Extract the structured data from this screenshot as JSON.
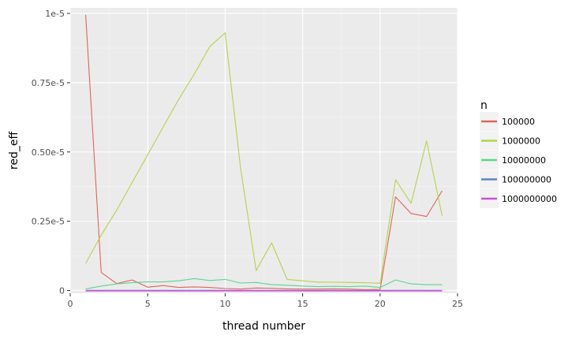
{
  "chart_data": {
    "type": "line",
    "xlabel": "thread number",
    "ylabel": "red_eff",
    "xlim": [
      0,
      25
    ],
    "ylim": [
      -1e-07,
      1.02e-05
    ],
    "x_ticks": [
      0,
      5,
      10,
      15,
      20,
      25
    ],
    "x_tick_labels": [
      "0",
      "5",
      "10",
      "15",
      "20",
      "25"
    ],
    "y_ticks": [
      0,
      2.5e-06,
      5e-06,
      7.5e-06,
      1e-05
    ],
    "y_tick_labels": [
      "0",
      "0.25e-5",
      "0.50e-5",
      "0.75e-5",
      "1e-5"
    ],
    "grid": true,
    "legend": {
      "title": "n",
      "position": "right"
    },
    "x": [
      1,
      2,
      3,
      4,
      5,
      6,
      7,
      8,
      9,
      10,
      11,
      12,
      13,
      14,
      15,
      16,
      17,
      18,
      19,
      20,
      21,
      22,
      23,
      24
    ],
    "series": [
      {
        "name": "100000",
        "color": "#e0645a",
        "values": [
          9.95e-06,
          6.5e-07,
          2.5e-07,
          3.8e-07,
          1.2e-07,
          1.8e-07,
          1.1e-07,
          1.3e-07,
          1.1e-07,
          7e-08,
          5e-08,
          9e-08,
          8e-08,
          6e-08,
          5e-08,
          5e-08,
          6e-08,
          5e-08,
          3e-08,
          4e-08,
          3.38e-06,
          2.78e-06,
          2.67e-06,
          3.6e-06
        ]
      },
      {
        "name": "1000000",
        "color": "#b3d44a",
        "values": [
          9.8e-07,
          2e-06,
          2.9e-06,
          3.9e-06,
          4.9e-06,
          5.9e-06,
          6.9e-06,
          7.8e-06,
          8.8e-06,
          9.3e-06,
          4.4e-06,
          7.2e-07,
          1.72e-06,
          4e-07,
          3.5e-07,
          3e-07,
          3e-07,
          2.9e-07,
          2.8e-07,
          2.6e-07,
          4e-06,
          3.15e-06,
          5.4e-06,
          2.7e-06
        ]
      },
      {
        "name": "10000000",
        "color": "#5cd68c",
        "values": [
          6e-08,
          1.6e-07,
          2.4e-07,
          2.8e-07,
          3.1e-07,
          3.1e-07,
          3.5e-07,
          4.3e-07,
          3.6e-07,
          4e-07,
          2.7e-07,
          2.9e-07,
          2.1e-07,
          1.9e-07,
          1.6e-07,
          1.4e-07,
          1.5e-07,
          1.4e-07,
          1.6e-07,
          1.1e-07,
          3.8e-07,
          2.4e-07,
          2.1e-07,
          2.1e-07
        ]
      },
      {
        "name": "100000000",
        "color": "#5b82d6",
        "values": [
          0,
          0,
          0,
          0,
          0,
          0,
          0,
          0,
          0,
          0,
          0,
          0,
          0,
          0,
          0,
          0,
          0,
          0,
          0,
          0,
          0,
          0,
          0,
          0
        ]
      },
      {
        "name": "1000000000",
        "color": "#c452d9",
        "values": [
          -1e-08,
          -1e-08,
          -1e-08,
          -1e-08,
          -1e-08,
          -1e-08,
          -1e-08,
          -1e-08,
          -1e-08,
          -1e-08,
          -1e-08,
          -1e-08,
          -1e-08,
          -1e-08,
          -1e-08,
          -1e-08,
          -1e-08,
          -1e-08,
          -1e-08,
          -1e-08,
          -1e-08,
          -1e-08,
          -1e-08,
          -1e-08
        ]
      }
    ]
  }
}
